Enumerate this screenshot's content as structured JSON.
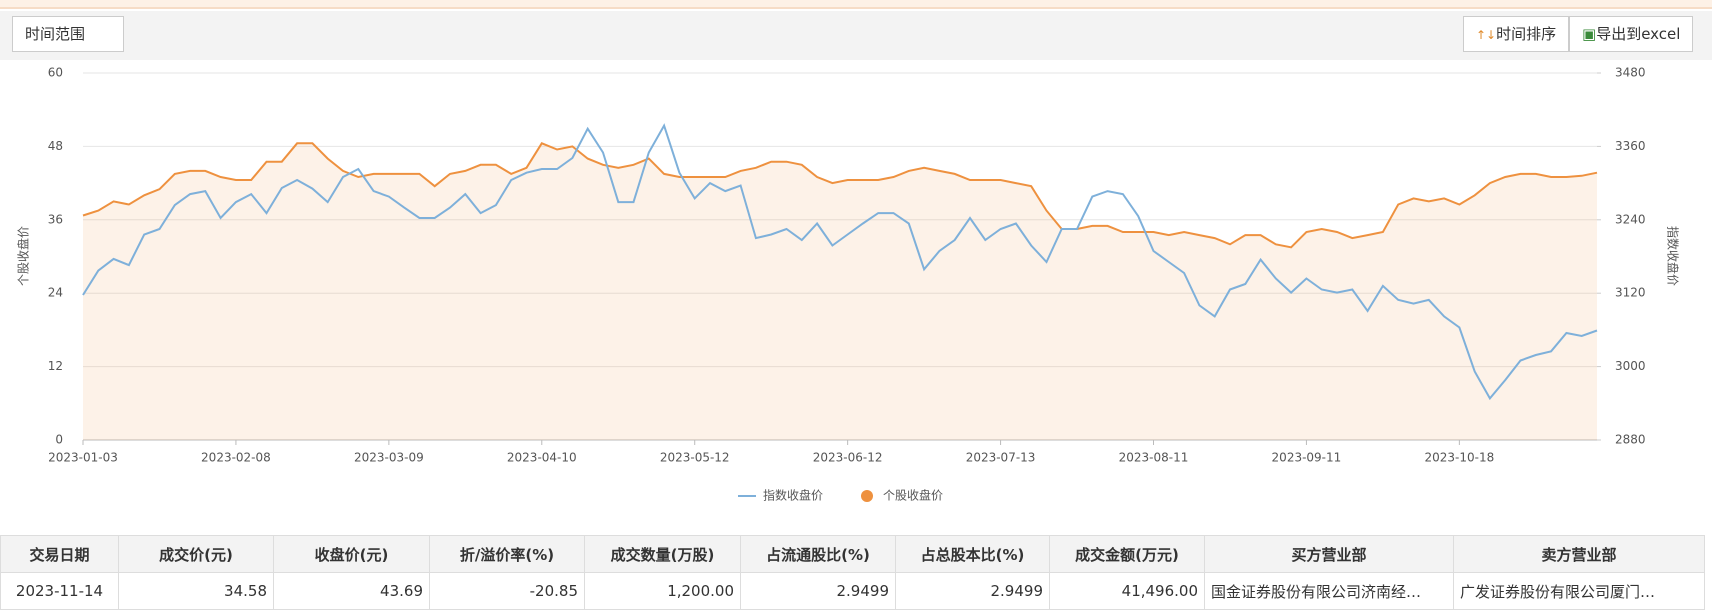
{
  "toolbar": {
    "range_button": "时间范围",
    "sort_button": "时间排序",
    "export_button": "导出到excel"
  },
  "chart_data": {
    "type": "line",
    "y_label": "个股收盘价",
    "y2_label": "指数收盘价",
    "categories": [
      "2023-01-03",
      null,
      null,
      null,
      null,
      null,
      null,
      null,
      null,
      null,
      "2023-02-08",
      null,
      null,
      null,
      null,
      null,
      null,
      null,
      null,
      null,
      "2023-03-09",
      null,
      null,
      null,
      null,
      null,
      null,
      null,
      null,
      null,
      "2023-04-10",
      null,
      null,
      null,
      null,
      null,
      null,
      null,
      null,
      null,
      "2023-05-12",
      null,
      null,
      null,
      null,
      null,
      null,
      null,
      null,
      null,
      "2023-06-12",
      null,
      null,
      null,
      null,
      null,
      null,
      null,
      null,
      null,
      "2023-07-13",
      null,
      null,
      null,
      null,
      null,
      null,
      null,
      null,
      null,
      "2023-08-11",
      null,
      null,
      null,
      null,
      null,
      null,
      null,
      null,
      null,
      "2023-09-11",
      null,
      null,
      null,
      null,
      null,
      null,
      null,
      null,
      null,
      "2023-10-18",
      null,
      null,
      null,
      null,
      null,
      null,
      null,
      null,
      null
    ],
    "ylim": [
      0,
      60
    ],
    "yticks": [
      0,
      12,
      24,
      36,
      48,
      60
    ],
    "y2lim": [
      2880,
      3480
    ],
    "y2ticks": [
      2880,
      3000,
      3120,
      3240,
      3360,
      3480
    ],
    "grid": true,
    "legend": "bottom",
    "series": [
      {
        "name": "指数收盘价",
        "color": "#7eb0da",
        "axis": "y2",
        "values": [
          3117,
          3157,
          3176,
          3166,
          3216,
          3225,
          3264,
          3282,
          3287,
          3243,
          3269,
          3282,
          3251,
          3292,
          3305,
          3291,
          3269,
          3310,
          3323,
          3287,
          3278,
          3260,
          3243,
          3243,
          3260,
          3282,
          3251,
          3264,
          3305,
          3317,
          3323,
          3323,
          3341,
          3389,
          3350,
          3269,
          3269,
          3350,
          3394,
          3317,
          3275,
          3300,
          3287,
          3296,
          3210,
          3216,
          3225,
          3207,
          3234,
          3198,
          3216,
          3234,
          3251,
          3251,
          3234,
          3159,
          3189,
          3207,
          3243,
          3207,
          3225,
          3234,
          3198,
          3171,
          3225,
          3225,
          3278,
          3287,
          3282,
          3246,
          3189,
          3171,
          3153,
          3100,
          3082,
          3126,
          3135,
          3175,
          3144,
          3121,
          3144,
          3126,
          3121,
          3126,
          3091,
          3132,
          3109,
          3103,
          3109,
          3082,
          3064,
          2992,
          2948,
          2978,
          3010,
          3019,
          3025,
          3055,
          3050,
          3059
        ]
      },
      {
        "name": "个股收盘价",
        "color": "#ee913f",
        "values": [
          36.7,
          37.5,
          39,
          38.5,
          40,
          41,
          43.5,
          44,
          44,
          43,
          42.5,
          42.5,
          45.5,
          45.5,
          48.5,
          48.5,
          46,
          44,
          43,
          43.5,
          43.5,
          43.5,
          43.5,
          41.5,
          43.5,
          44,
          45,
          45,
          43.5,
          44.5,
          48.5,
          47.5,
          48,
          46,
          45,
          44.5,
          45,
          46,
          43.5,
          43,
          43,
          43,
          43,
          44,
          44.5,
          45.5,
          45.5,
          45,
          43,
          42,
          42.5,
          42.5,
          42.5,
          43,
          44,
          44.5,
          44,
          43.5,
          42.5,
          42.5,
          42.5,
          42,
          41.5,
          37.5,
          34.5,
          34.5,
          35,
          35,
          34,
          34,
          34,
          33.5,
          34,
          33.5,
          33,
          32,
          33.5,
          33.5,
          32,
          31.5,
          34,
          34.5,
          34,
          33,
          33.5,
          34,
          38.5,
          39.5,
          39,
          39.5,
          38.5,
          40,
          42,
          43,
          43.5,
          43.5,
          43,
          43,
          43.2,
          43.7
        ]
      }
    ]
  },
  "table": {
    "columns": [
      "交易日期",
      "成交价(元)",
      "收盘价(元)",
      "折/溢价率(%)",
      "成交数量(万股)",
      "占流通股比(%)",
      "占总股本比(%)",
      "成交金额(万元)",
      "买方营业部",
      "卖方营业部"
    ],
    "rows": [
      [
        "2023-11-14",
        "34.58",
        "43.69",
        "-20.85",
        "1,200.00",
        "2.9499",
        "2.9499",
        "41,496.00",
        "国金证券股份有限公司济南经…",
        "广发证券股份有限公司厦门…"
      ]
    ]
  }
}
